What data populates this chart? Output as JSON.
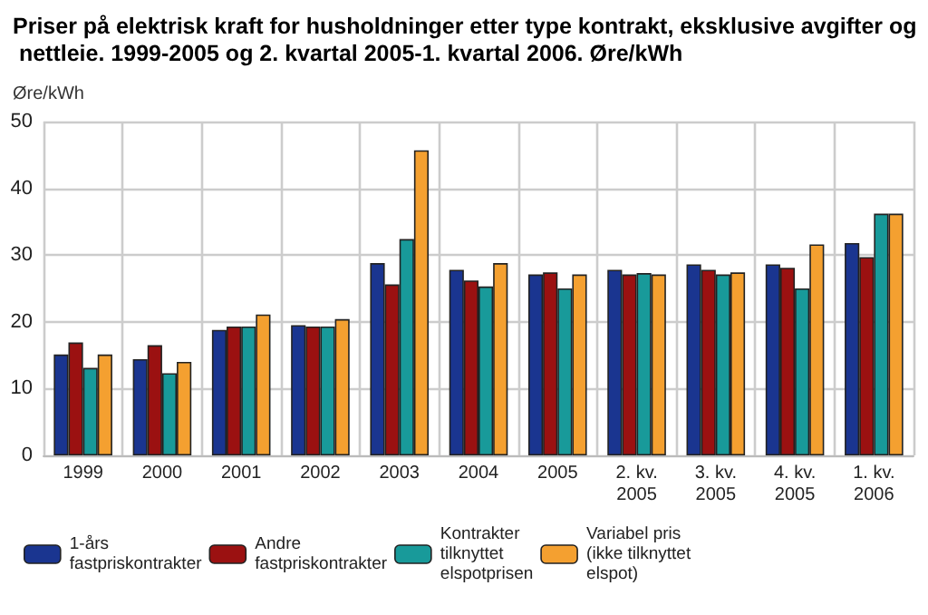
{
  "chart_data": {
    "type": "bar",
    "title": "Priser på elektrisk kraft for husholdninger etter type kontrakt, eksklusive avgifter og nettleie. 1999-2005 og 2. kvartal 2005-1. kvartal 2006. Øre/kWh",
    "ylabel": "Øre/kWh",
    "categories": [
      "1999",
      "2000",
      "2001",
      "2002",
      "2003",
      "2004",
      "2005",
      "2. kv. 2005",
      "3. kv. 2005",
      "4. kv. 2005",
      "1. kv. 2006"
    ],
    "series": [
      {
        "name": "1-års fastpriskontrakter",
        "color": "#1a3590",
        "values": [
          15.1,
          14.4,
          18.8,
          19.5,
          28.8,
          27.8,
          27.1,
          27.8,
          28.6,
          28.6,
          31.8
        ]
      },
      {
        "name": "Andre fastpriskontrakter",
        "color": "#9b1111",
        "values": [
          16.9,
          16.5,
          19.3,
          19.3,
          25.6,
          26.2,
          27.4,
          27.1,
          27.8,
          28.1,
          29.7
        ]
      },
      {
        "name": "Kontrakter tilknyttet elspotprisen",
        "color": "#189a9a",
        "values": [
          13.1,
          12.3,
          19.3,
          19.3,
          32.4,
          25.3,
          25.0,
          27.3,
          27.1,
          25.0,
          36.2
        ]
      },
      {
        "name": "Variabel pris (ikke tilknyttet elspot)",
        "color": "#f4a030",
        "values": [
          15.1,
          14.0,
          21.1,
          20.4,
          45.7,
          28.8,
          27.1,
          27.1,
          27.4,
          31.6,
          36.2
        ]
      }
    ],
    "ylim": [
      0,
      50
    ],
    "yticks": [
      0,
      10,
      20,
      30,
      40,
      50
    ],
    "grid": true,
    "legend": "bottom"
  }
}
